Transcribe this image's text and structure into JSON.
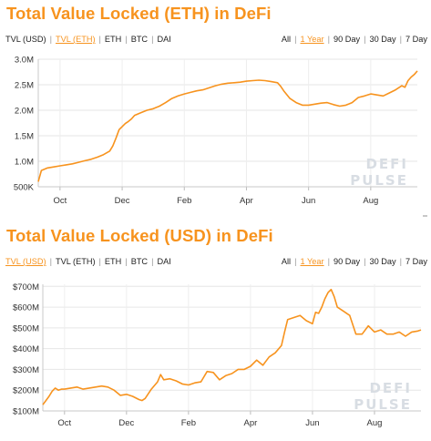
{
  "charts": [
    {
      "title": "Total Value Locked (ETH) in DeFi",
      "toggle": [
        {
          "label": "TVL (USD)",
          "active": false
        },
        {
          "label": "TVL (ETH)",
          "active": true
        },
        {
          "label": "ETH",
          "active": false
        },
        {
          "label": "BTC",
          "active": false
        },
        {
          "label": "DAI",
          "active": false
        }
      ],
      "ranges": [
        {
          "label": "All",
          "active": false
        },
        {
          "label": "1 Year",
          "active": true
        },
        {
          "label": "90 Day",
          "active": false
        },
        {
          "label": "30 Day",
          "active": false
        },
        {
          "label": "7 Day",
          "active": false
        }
      ],
      "watermark": [
        "DEFI",
        "PULSE"
      ],
      "line_color": "#f7931e"
    },
    {
      "title": "Total Value Locked (USD) in DeFi",
      "toggle": [
        {
          "label": "TVL (USD)",
          "active": true
        },
        {
          "label": "TVL (ETH)",
          "active": false
        },
        {
          "label": "ETH",
          "active": false
        },
        {
          "label": "BTC",
          "active": false
        },
        {
          "label": "DAI",
          "active": false
        }
      ],
      "ranges": [
        {
          "label": "All",
          "active": false
        },
        {
          "label": "1 Year",
          "active": true
        },
        {
          "label": "90 Day",
          "active": false
        },
        {
          "label": "30 Day",
          "active": false
        },
        {
          "label": "7 Day",
          "active": false
        }
      ],
      "watermark": [
        "DEFI",
        "PULSE"
      ],
      "line_color": "#f7931e"
    }
  ],
  "chart_data": [
    {
      "type": "line",
      "title": "Total Value Locked (ETH) in DeFi",
      "x_tick_labels": [
        "Oct",
        "Dec",
        "Feb",
        "Apr",
        "Jun",
        "Aug"
      ],
      "x_tick_months": [
        1,
        3,
        5,
        7,
        9,
        11
      ],
      "x_range_months": [
        0.3,
        12.5
      ],
      "y_tick_labels": [
        "500K",
        "1.0M",
        "1.5M",
        "2.0M",
        "2.5M",
        "3.0M"
      ],
      "y_ticks": [
        500000,
        1000000,
        1500000,
        2000000,
        2500000,
        3000000
      ],
      "ylim": [
        500000,
        3000000
      ],
      "grid": true,
      "series": [
        {
          "x_months": [
            0.3,
            0.4,
            0.6,
            0.8,
            1.0,
            1.2,
            1.4,
            1.6,
            1.8,
            2.0,
            2.2,
            2.4,
            2.6,
            2.7,
            2.8,
            2.9,
            3.0,
            3.1,
            3.2,
            3.3,
            3.4,
            3.6,
            3.8,
            4.0,
            4.2,
            4.4,
            4.6,
            4.8,
            5.0,
            5.2,
            5.4,
            5.6,
            5.8,
            6.0,
            6.2,
            6.4,
            6.6,
            6.8,
            7.0,
            7.2,
            7.4,
            7.6,
            7.8,
            8.0,
            8.1,
            8.2,
            8.4,
            8.6,
            8.8,
            9.0,
            9.2,
            9.4,
            9.6,
            9.8,
            10.0,
            10.2,
            10.4,
            10.6,
            10.8,
            11.0,
            11.2,
            11.4,
            11.6,
            11.8,
            12.0,
            12.1,
            12.2,
            12.3,
            12.4,
            12.5
          ],
          "values": [
            600000,
            820000,
            870000,
            890000,
            910000,
            930000,
            950000,
            980000,
            1010000,
            1040000,
            1080000,
            1130000,
            1200000,
            1300000,
            1450000,
            1620000,
            1680000,
            1740000,
            1780000,
            1830000,
            1900000,
            1950000,
            2000000,
            2030000,
            2080000,
            2150000,
            2230000,
            2280000,
            2320000,
            2350000,
            2380000,
            2400000,
            2440000,
            2480000,
            2510000,
            2530000,
            2540000,
            2550000,
            2570000,
            2580000,
            2590000,
            2580000,
            2560000,
            2540000,
            2470000,
            2380000,
            2230000,
            2150000,
            2100000,
            2100000,
            2120000,
            2140000,
            2150000,
            2110000,
            2080000,
            2100000,
            2150000,
            2250000,
            2280000,
            2320000,
            2300000,
            2280000,
            2340000,
            2400000,
            2480000,
            2450000,
            2580000,
            2650000,
            2700000,
            2770000
          ]
        }
      ]
    },
    {
      "type": "line",
      "title": "Total Value Locked (USD) in DeFi",
      "x_tick_labels": [
        "Oct",
        "Dec",
        "Feb",
        "Apr",
        "Jun",
        "Aug"
      ],
      "x_tick_months": [
        1,
        3,
        5,
        7,
        9,
        11
      ],
      "x_range_months": [
        0.3,
        12.5
      ],
      "y_tick_labels": [
        "$100M",
        "$200M",
        "$300M",
        "$400M",
        "$500M",
        "$600M",
        "$700M"
      ],
      "y_ticks": [
        100,
        200,
        300,
        400,
        500,
        600,
        700
      ],
      "ylim": [
        100,
        710
      ],
      "grid": true,
      "series": [
        {
          "x_months": [
            0.3,
            0.4,
            0.5,
            0.6,
            0.7,
            0.8,
            0.9,
            1.0,
            1.2,
            1.4,
            1.6,
            1.8,
            2.0,
            2.2,
            2.4,
            2.6,
            2.8,
            3.0,
            3.2,
            3.4,
            3.5,
            3.6,
            3.8,
            4.0,
            4.1,
            4.2,
            4.4,
            4.6,
            4.8,
            5.0,
            5.2,
            5.4,
            5.6,
            5.8,
            6.0,
            6.2,
            6.4,
            6.6,
            6.8,
            7.0,
            7.2,
            7.4,
            7.6,
            7.8,
            8.0,
            8.1,
            8.2,
            8.4,
            8.6,
            8.8,
            9.0,
            9.1,
            9.2,
            9.3,
            9.4,
            9.5,
            9.6,
            9.7,
            9.8,
            10.0,
            10.2,
            10.4,
            10.6,
            10.8,
            11.0,
            11.2,
            11.4,
            11.6,
            11.8,
            12.0,
            12.2,
            12.4,
            12.5
          ],
          "values": [
            130,
            150,
            170,
            195,
            210,
            200,
            205,
            205,
            210,
            215,
            205,
            210,
            215,
            220,
            215,
            200,
            175,
            180,
            170,
            155,
            150,
            160,
            205,
            240,
            275,
            250,
            255,
            245,
            230,
            225,
            235,
            240,
            290,
            285,
            250,
            270,
            280,
            300,
            300,
            315,
            345,
            320,
            360,
            380,
            415,
            480,
            540,
            550,
            560,
            535,
            520,
            575,
            570,
            600,
            640,
            670,
            685,
            650,
            600,
            580,
            560,
            470,
            470,
            510,
            480,
            490,
            470,
            470,
            480,
            460,
            480,
            485,
            490
          ]
        }
      ]
    }
  ]
}
